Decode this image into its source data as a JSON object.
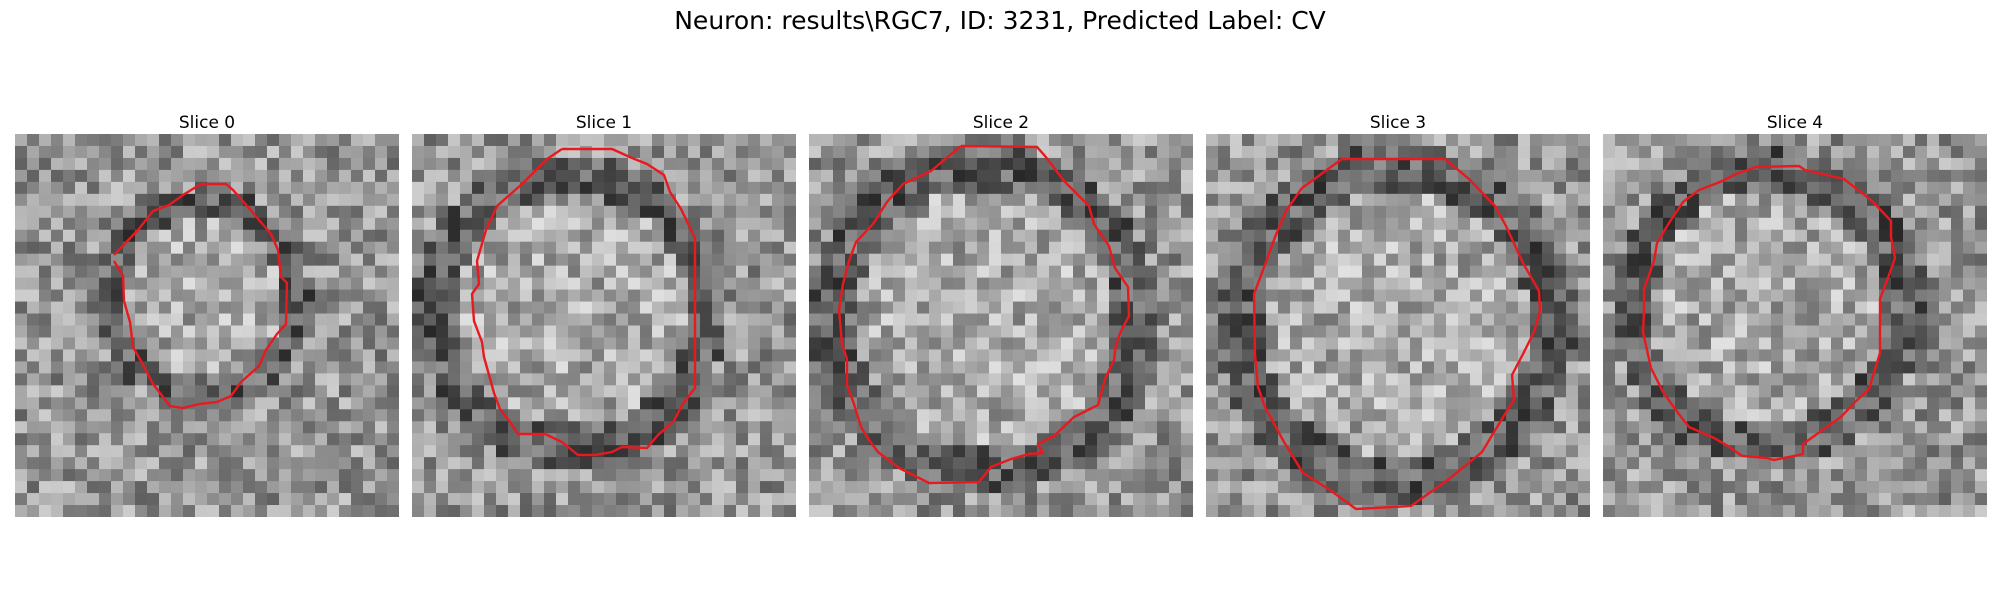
{
  "figure": {
    "suptitle": "Neuron: results\\RGC7, ID: 3231, Predicted Label: CV"
  },
  "panels": [
    {
      "title": "Slice 0",
      "contour_color": "#e8191f"
    },
    {
      "title": "Slice 1",
      "contour_color": "#e8191f"
    },
    {
      "title": "Slice 2",
      "contour_color": "#e8191f"
    },
    {
      "title": "Slice 3",
      "contour_color": "#e8191f"
    },
    {
      "title": "Slice 4",
      "contour_color": "#e8191f"
    }
  ]
}
